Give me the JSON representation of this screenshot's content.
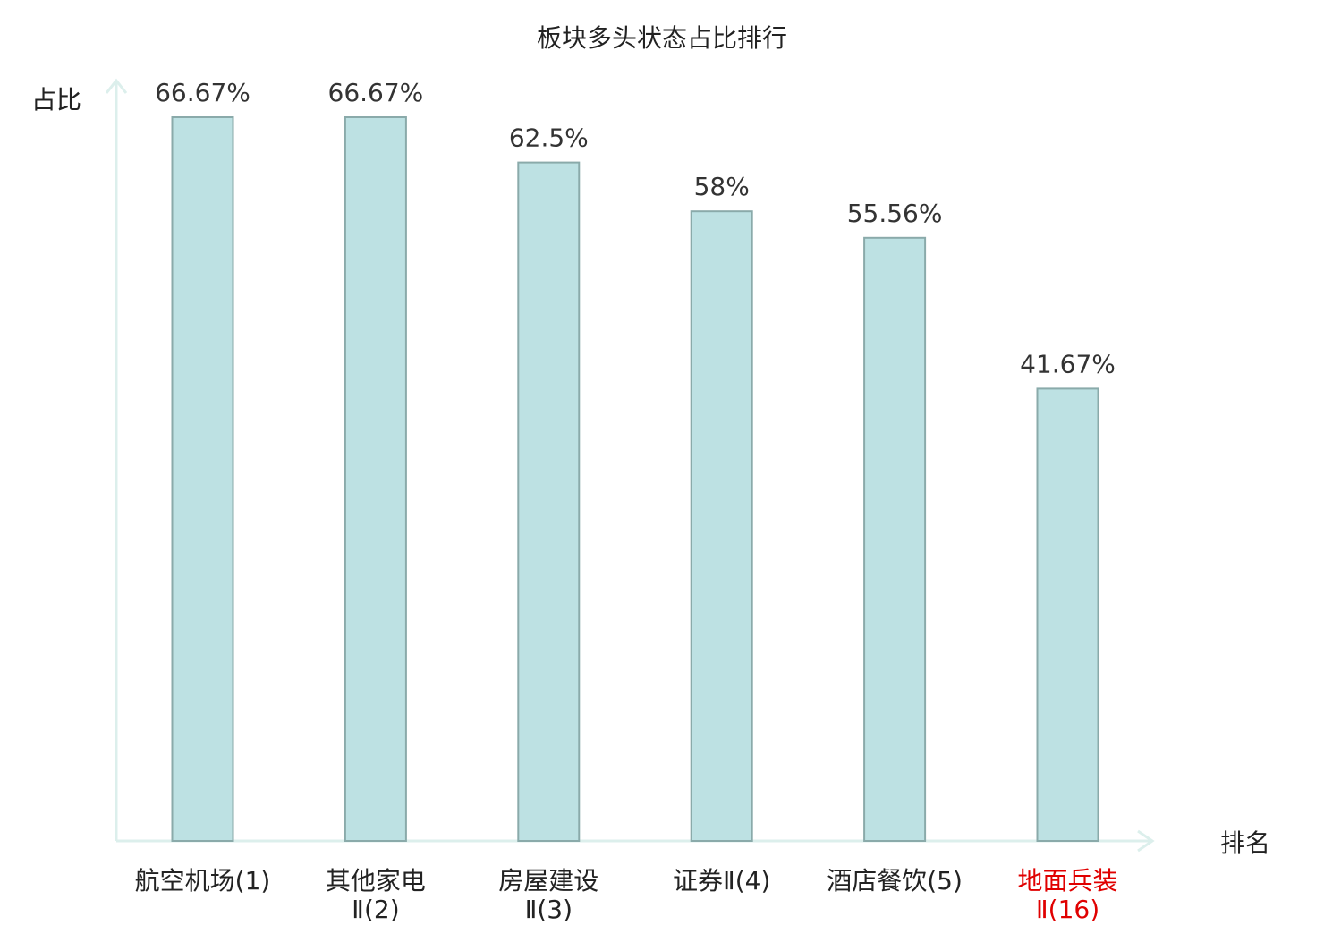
{
  "chart_data": {
    "type": "bar",
    "title": "板块多头状态占比排行",
    "ylabel": "占比",
    "xlabel": "排名",
    "categories": [
      {
        "line1": "航空机场(1)",
        "line2": "",
        "highlight": false
      },
      {
        "line1": "其他家电",
        "line2": "Ⅱ(2)",
        "highlight": false
      },
      {
        "line1": "房屋建设",
        "line2": "Ⅱ(3)",
        "highlight": false
      },
      {
        "line1": "证券Ⅱ(4)",
        "line2": "",
        "highlight": false
      },
      {
        "line1": "酒店餐饮(5)",
        "line2": "",
        "highlight": false
      },
      {
        "line1": "地面兵装",
        "line2": "Ⅱ(16)",
        "highlight": true
      }
    ],
    "values": [
      66.67,
      66.67,
      62.5,
      58,
      55.56,
      41.67
    ],
    "value_labels": [
      "66.67%",
      "66.67%",
      "62.5%",
      "58%",
      "55.56%",
      "41.67%"
    ],
    "ylim": [
      0,
      70
    ],
    "grid": false,
    "colors": {
      "bar_fill": "#bde1e3",
      "bar_stroke": "#8aaaaa",
      "axis": "#dcefec",
      "text": "#222222",
      "value_text": "#333333",
      "highlight_text": "#e00000"
    }
  }
}
